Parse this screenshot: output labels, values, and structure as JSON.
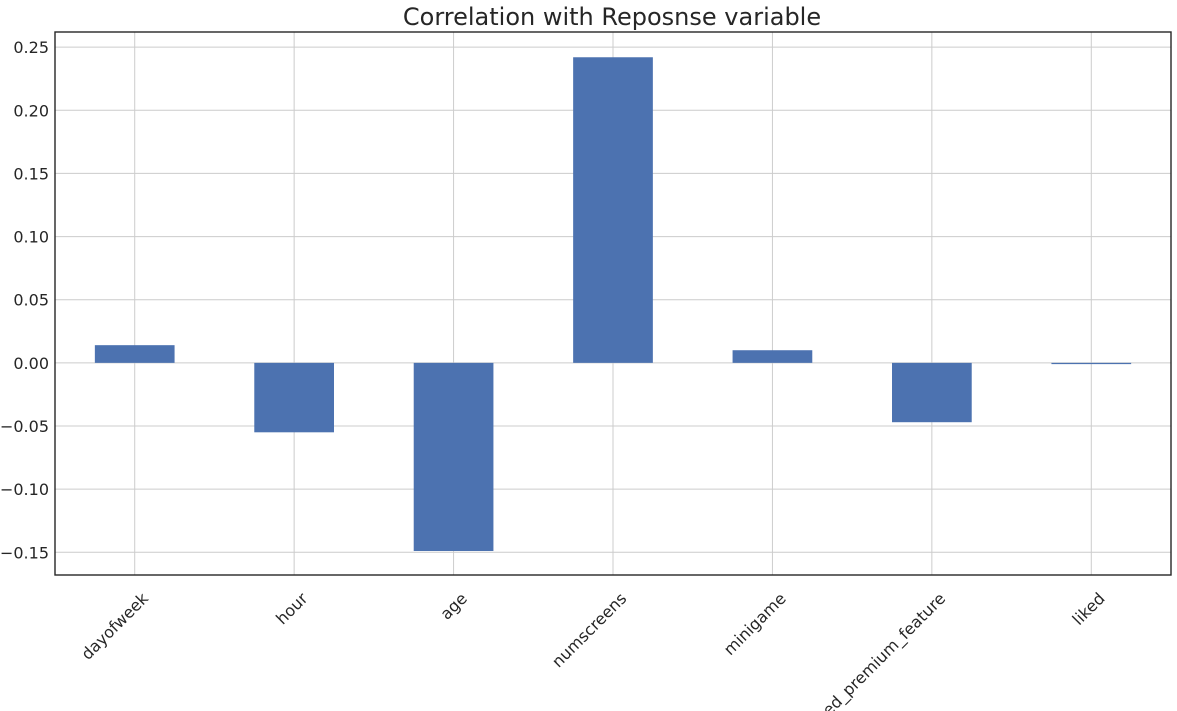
{
  "chart_data": {
    "type": "bar",
    "title": "Correlation with Reposnse variable",
    "xlabel": "",
    "ylabel": "",
    "categories": [
      "dayofweek",
      "hour",
      "age",
      "numscreens",
      "minigame",
      "used_premium_feature",
      "liked"
    ],
    "values": [
      0.014,
      -0.055,
      -0.149,
      0.242,
      0.01,
      -0.047,
      -0.001
    ],
    "ylim": [
      -0.168,
      0.262
    ],
    "yticks": [
      -0.15,
      -0.1,
      -0.05,
      0.0,
      0.05,
      0.1,
      0.15,
      0.2,
      0.25
    ],
    "ytick_labels": [
      "−0.15",
      "−0.10",
      "−0.05",
      "0.00",
      "0.05",
      "0.10",
      "0.15",
      "0.20",
      "0.25"
    ],
    "grid": true,
    "legend": "none",
    "bar_color": "#4c72b0",
    "xtick_rotation": -45
  }
}
